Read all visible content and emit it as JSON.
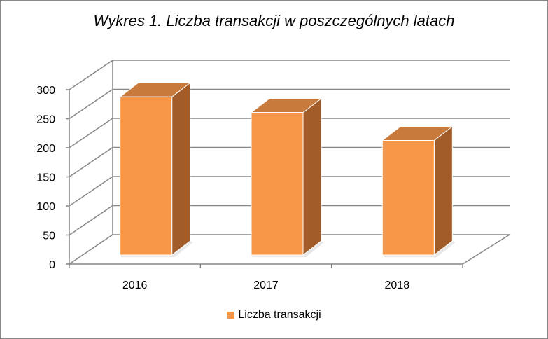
{
  "chart_data": {
    "type": "bar",
    "title": "Wykres 1. Liczba transakcji w poszczególnych latach",
    "categories": [
      "2016",
      "2017",
      "2018"
    ],
    "series": [
      {
        "name": "Liczba transakcji",
        "values": [
          272,
          245,
          197
        ]
      }
    ],
    "y_ticks": [
      "0",
      "50",
      "100",
      "150",
      "200",
      "250",
      "300"
    ],
    "ylim": [
      0,
      300
    ],
    "grid": true,
    "legend_position": "bottom",
    "style": "3d-column",
    "colors": {
      "front": "#F79646",
      "side": "#A25C2A",
      "top": "#C87A3D",
      "grid": "#868686"
    }
  }
}
